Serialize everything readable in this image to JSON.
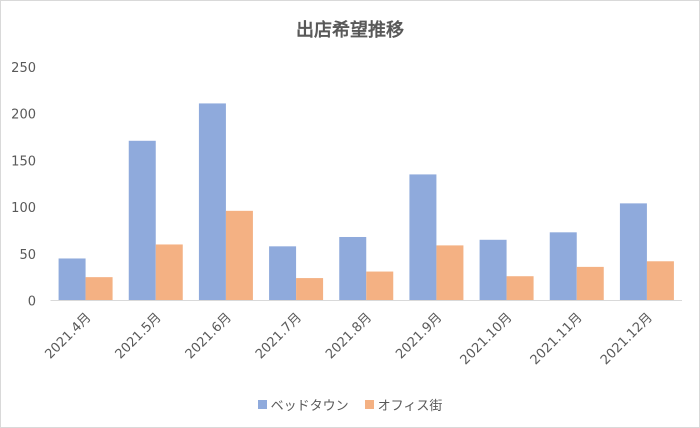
{
  "chart_data": {
    "type": "bar",
    "title": "出店希望推移",
    "categories": [
      "2021.4月",
      "2021.5月",
      "2021.6月",
      "2021.7月",
      "2021.8月",
      "2021.9月",
      "2021.10月",
      "2021.11月",
      "2021.12月"
    ],
    "series": [
      {
        "name": "ベッドタウン",
        "color": "#8FAADC",
        "values": [
          45,
          171,
          211,
          58,
          68,
          135,
          65,
          73,
          104
        ]
      },
      {
        "name": "オフィス街",
        "color": "#F4B183",
        "values": [
          25,
          60,
          96,
          24,
          31,
          59,
          26,
          36,
          42
        ]
      }
    ],
    "yticks": [
      0,
      50,
      100,
      150,
      200,
      250
    ],
    "ylim": [
      0,
      250
    ],
    "grid": false,
    "legend": "bottom",
    "xlabel": "",
    "ylabel": ""
  }
}
